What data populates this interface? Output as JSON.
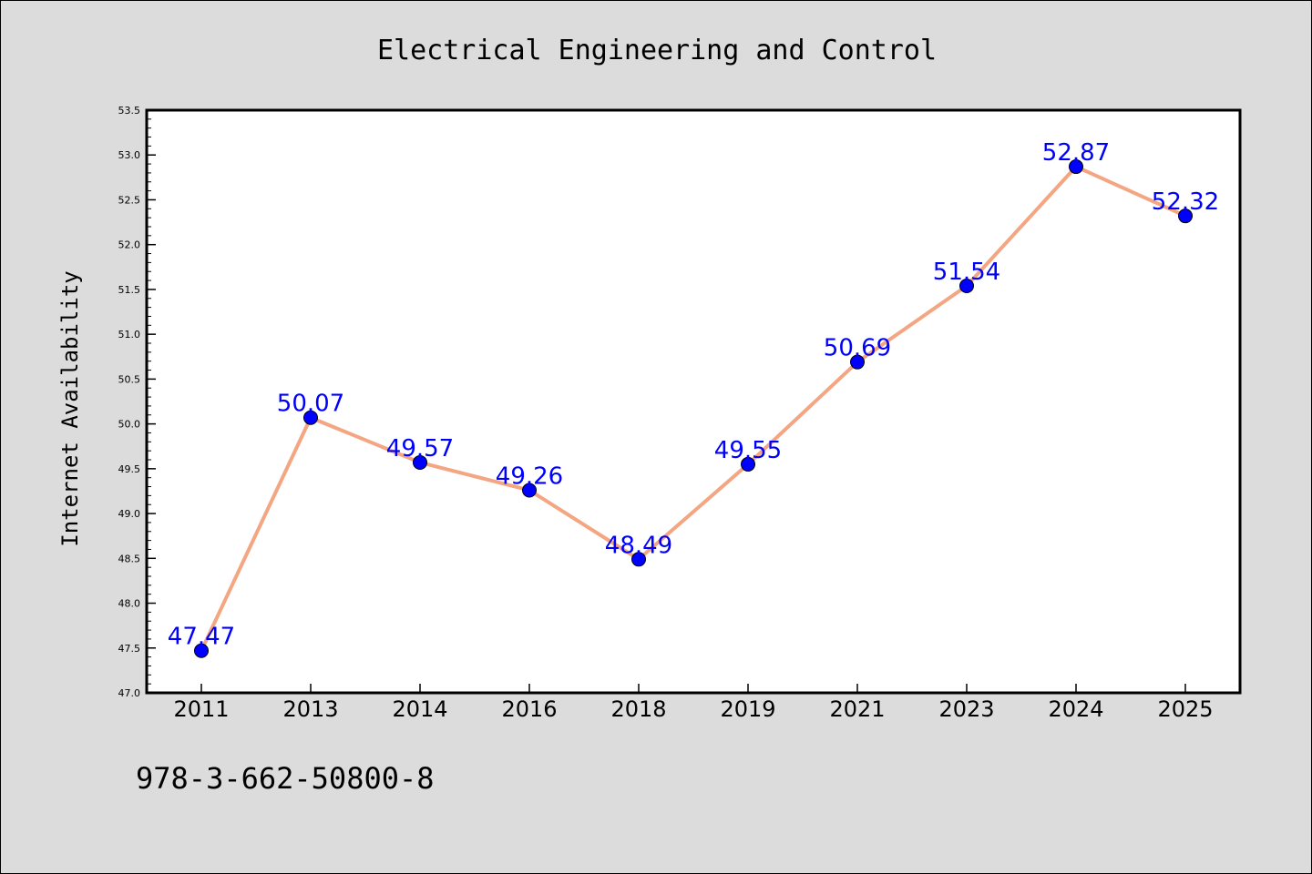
{
  "chart_data": {
    "type": "line",
    "title": "Electrical Engineering and Control",
    "xlabel": "",
    "ylabel": "Internet Availability",
    "categories": [
      "2011",
      "2013",
      "2014",
      "2016",
      "2018",
      "2019",
      "2021",
      "2023",
      "2024",
      "2025"
    ],
    "series": [
      {
        "values": [
          47.47,
          50.07,
          49.57,
          49.26,
          48.49,
          49.55,
          50.69,
          51.54,
          52.87,
          52.32
        ]
      }
    ],
    "data_labels": [
      "47.47",
      "50.07",
      "49.57",
      "49.26",
      "48.49",
      "49.55",
      "50.69",
      "51.54",
      "52.87",
      "52.32"
    ],
    "ylim": [
      47.0,
      53.5
    ],
    "yticks": [
      "47.0",
      "47.5",
      "48.0",
      "48.5",
      "49.0",
      "49.5",
      "50.0",
      "50.5",
      "51.0",
      "51.5",
      "52.0",
      "52.5",
      "53.0",
      "53.5"
    ],
    "grid": false,
    "legend": "none",
    "colors": {
      "line": "#f4a582",
      "marker": "#0000ff",
      "data_label": "#0000ff",
      "plot_background": "#ffffff",
      "figure_background": "#dcdcdc"
    }
  },
  "footnote": "978-3-662-50800-8"
}
